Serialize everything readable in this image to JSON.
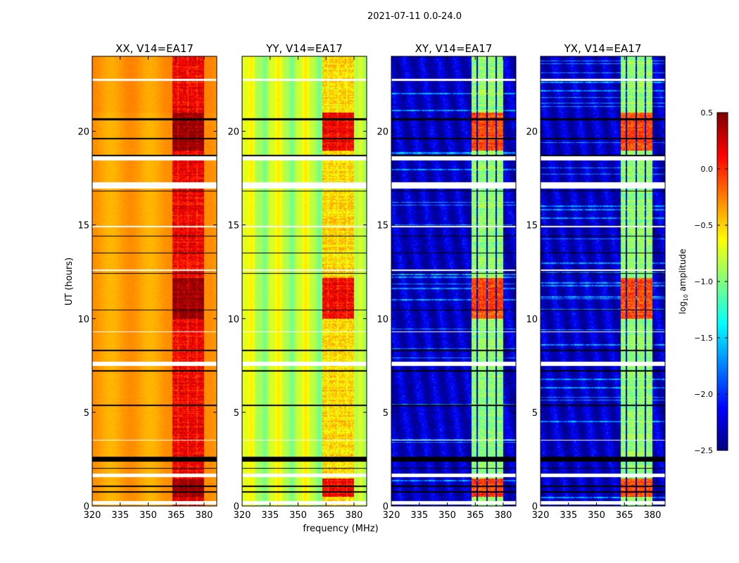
{
  "chart_data": {
    "type": "heatmap",
    "title": "2021-07-11 0.0-24.0",
    "xlabel": "frequency (MHz)",
    "ylabel": "UT (hours)",
    "xlim": [
      320,
      386.8
    ],
    "ylim": [
      0,
      24
    ],
    "xticks": [
      320,
      335,
      350,
      365,
      380
    ],
    "xtick_labels": [
      "320",
      "335",
      "350",
      "365",
      "380"
    ],
    "yticks": [
      0,
      5,
      10,
      15,
      20
    ],
    "ytick_labels": [
      "0",
      "5",
      "10",
      "15",
      "20"
    ],
    "rfi_band_mhz": [
      363,
      380
    ],
    "rfi_gaps_mhz": [
      366,
      371,
      376
    ],
    "active_hours": [
      [
        0.5,
        1.5
      ],
      [
        10.0,
        12.2
      ],
      [
        19.0,
        21.0
      ]
    ],
    "flagged_hours_white": [
      [
        0.1,
        0.3
      ],
      [
        1.55,
        1.75
      ],
      [
        7.5,
        7.7
      ],
      [
        12.55,
        12.65
      ],
      [
        16.95,
        17.3
      ],
      [
        18.45,
        18.7
      ],
      [
        22.7,
        22.8
      ],
      [
        3.5,
        3.55
      ],
      [
        9.3,
        9.35
      ],
      [
        14.9,
        14.95
      ]
    ],
    "flagged_hours_black": [
      [
        2.4,
        2.65
      ],
      [
        0.75,
        0.8
      ],
      [
        1.05,
        1.1
      ],
      [
        2.0,
        2.05
      ],
      [
        5.35,
        5.42
      ],
      [
        7.2,
        7.26
      ],
      [
        8.3,
        8.35
      ],
      [
        10.45,
        10.5
      ],
      [
        12.4,
        12.46
      ],
      [
        13.5,
        13.55
      ],
      [
        14.4,
        14.45
      ],
      [
        16.8,
        16.86
      ],
      [
        18.7,
        18.76
      ],
      [
        19.6,
        19.66
      ],
      [
        20.6,
        20.7
      ]
    ],
    "panels": [
      {
        "title": "XX, V14=EA17",
        "baseline": -0.35,
        "band": 0.15,
        "active_band": 0.45
      },
      {
        "title": "YY, V14=EA17",
        "baseline": -0.8,
        "band": -0.5,
        "active_band": 0.15
      },
      {
        "title": "XY, V14=EA17",
        "baseline": -2.3,
        "band": -0.95,
        "active_band": -0.1
      },
      {
        "title": "YX, V14=EA17",
        "baseline": -2.3,
        "band": -0.95,
        "active_band": -0.1
      }
    ],
    "colorbar": {
      "label_parts": [
        "log",
        "10",
        " amplitude"
      ],
      "range": [
        -2.5,
        0.5
      ],
      "ticks": [
        0.5,
        0.0,
        -0.5,
        -1.0,
        -1.5,
        -2.0,
        -2.5
      ],
      "tick_labels": [
        "0.5",
        "0.0",
        "−0.5",
        "−1.0",
        "−1.5",
        "−2.0",
        "−2.5"
      ],
      "colormap": "jet"
    }
  }
}
